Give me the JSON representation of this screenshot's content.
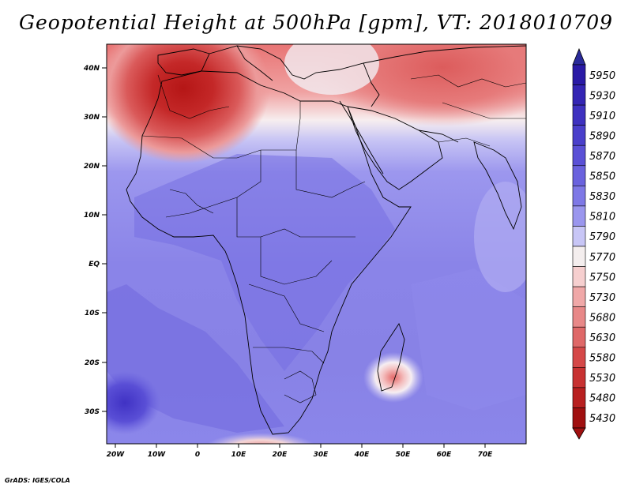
{
  "title": "Geopotential Height at 500hPa [gpm], VT: 2018010709",
  "credit": "GrADS: IGES/COLA",
  "lat_labels": [
    "40N",
    "30N",
    "20N",
    "10N",
    "EQ",
    "10S",
    "20S",
    "30S"
  ],
  "lon_labels": [
    "20W",
    "10W",
    "0",
    "10E",
    "20E",
    "30E",
    "40E",
    "50E",
    "60E",
    "70E"
  ],
  "colorbar": {
    "levels": [
      "5950",
      "5930",
      "5910",
      "5890",
      "5870",
      "5850",
      "5830",
      "5810",
      "5790",
      "5770",
      "5750",
      "5730",
      "5680",
      "5630",
      "5580",
      "5530",
      "5480",
      "5430"
    ],
    "colors": [
      "#2a1aa6",
      "#3425b4",
      "#3e31c0",
      "#4a3fcb",
      "#5a50d6",
      "#6a62de",
      "#7e78e6",
      "#9a96ee",
      "#c8c6f6",
      "#f4eeee",
      "#f6cfcf",
      "#f0a8a8",
      "#e88888",
      "#df6868",
      "#d54848",
      "#c83232",
      "#b82020",
      "#a01010"
    ],
    "top_arrow": "#2a2a9a",
    "bottom_arrow": "#a01010"
  },
  "map": {
    "ocean_base": "#8b86ea",
    "land_base": "#6f69df",
    "north_high": "#e87070",
    "north_core": "#c42424",
    "white_band": "#f4f2fa",
    "cyclone_center": "#e87878"
  }
}
